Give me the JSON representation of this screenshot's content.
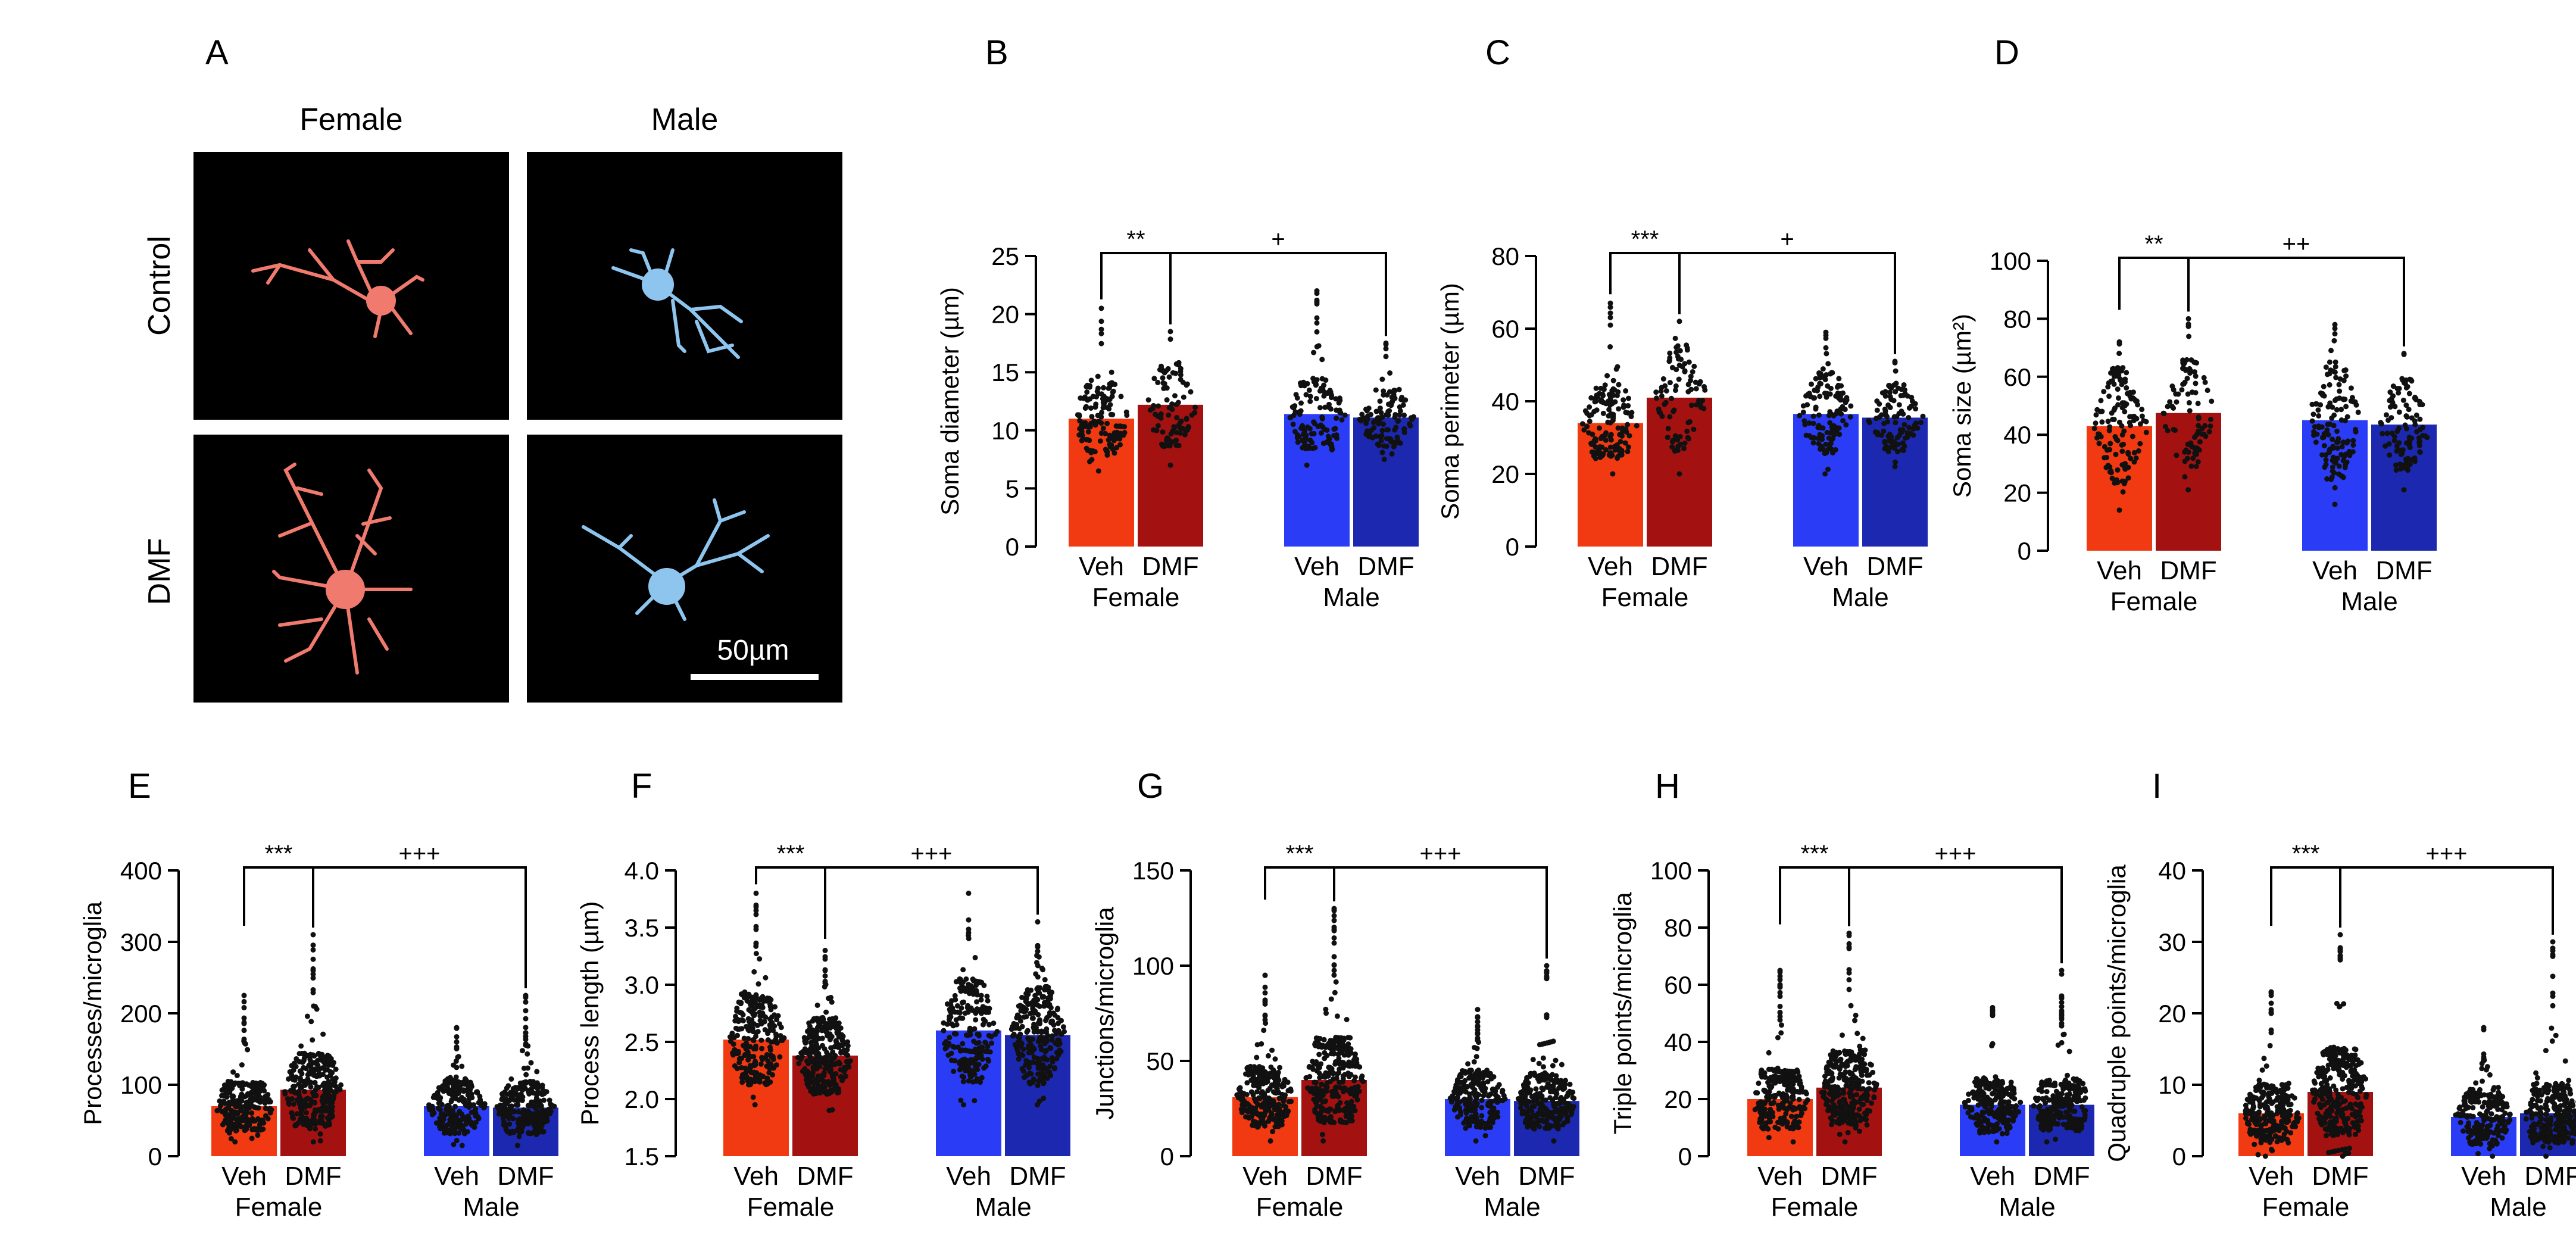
{
  "panel_a": {
    "letter": "A",
    "col_labels": [
      "Female",
      "Male"
    ],
    "row_labels": [
      "Control",
      "DMF"
    ],
    "scale_bar": "50µm",
    "colors": {
      "female_cell": "#f07a6e",
      "male_cell": "#8ec5ee",
      "background": "#000000"
    }
  },
  "groups": [
    {
      "name": "Female",
      "conditions": [
        "Veh",
        "DMF"
      ]
    },
    {
      "name": "Male",
      "conditions": [
        "Veh",
        "DMF"
      ]
    }
  ],
  "bar_colors": [
    "#f23a12",
    "#a31210",
    "#2b3cf7",
    "#1c28b0"
  ],
  "chart_data": [
    {
      "id": "B",
      "type": "bar",
      "ylabel": "Soma diameter (µm)",
      "ylim": [
        0,
        25
      ],
      "yticks": [
        0,
        5,
        10,
        15,
        20,
        25
      ],
      "categories": [
        "Veh",
        "DMF",
        "Veh",
        "DMF"
      ],
      "values": [
        11,
        12.2,
        11.4,
        11.1
      ],
      "point_range": [
        [
          6.5,
          20.5
        ],
        [
          7,
          18.5
        ],
        [
          7,
          22
        ],
        [
          7.5,
          17.5
        ]
      ],
      "point_counts": [
        140,
        90,
        130,
        110
      ],
      "sig_female": "**",
      "sig_cross": "+"
    },
    {
      "id": "C",
      "type": "bar",
      "ylabel": "Soma perimeter (µm)",
      "ylim": [
        0,
        80
      ],
      "yticks": [
        0,
        20,
        40,
        60,
        80
      ],
      "categories": [
        "Veh",
        "DMF",
        "Veh",
        "DMF"
      ],
      "values": [
        34,
        41,
        36.5,
        35.5
      ],
      "point_range": [
        [
          20,
          67
        ],
        [
          20,
          62
        ],
        [
          20,
          59
        ],
        [
          22,
          51
        ]
      ],
      "point_counts": [
        140,
        90,
        130,
        110
      ],
      "sig_female": "***",
      "sig_cross": "+"
    },
    {
      "id": "D",
      "type": "bar",
      "ylabel": "Soma size (µm²)",
      "ylim": [
        0,
        100
      ],
      "yticks": [
        0,
        20,
        40,
        60,
        80,
        100
      ],
      "categories": [
        "Veh",
        "DMF",
        "Veh",
        "DMF"
      ],
      "values": [
        43,
        47.5,
        45,
        43.5
      ],
      "point_range": [
        [
          14,
          72
        ],
        [
          21,
          80
        ],
        [
          16,
          78
        ],
        [
          21,
          68
        ]
      ],
      "point_counts": [
        140,
        90,
        130,
        110
      ],
      "sig_female": "**",
      "sig_cross": "++"
    },
    {
      "id": "E",
      "type": "bar",
      "ylabel": "Processes/microglia",
      "ylim": [
        0,
        400
      ],
      "yticks": [
        0,
        100,
        200,
        300,
        400
      ],
      "categories": [
        "Veh",
        "DMF",
        "Veh",
        "DMF"
      ],
      "values": [
        70,
        93,
        70,
        68
      ],
      "point_range": [
        [
          20,
          225
        ],
        [
          20,
          310
        ],
        [
          15,
          180
        ],
        [
          15,
          225
        ]
      ],
      "point_counts": [
        250,
        300,
        230,
        260
      ],
      "sig_female": "***",
      "sig_cross": "+++"
    },
    {
      "id": "F",
      "type": "bar",
      "ylabel": "Process length (µm)",
      "ylim": [
        1.5,
        4.0
      ],
      "yticks": [
        1.5,
        2.0,
        2.5,
        3.0,
        3.5,
        4.0
      ],
      "categories": [
        "Veh",
        "DMF",
        "Veh",
        "DMF"
      ],
      "values": [
        2.52,
        2.38,
        2.6,
        2.56
      ],
      "point_range": [
        [
          1.95,
          3.8
        ],
        [
          1.9,
          3.3
        ],
        [
          1.95,
          3.8
        ],
        [
          1.95,
          3.55
        ]
      ],
      "point_counts": [
        250,
        300,
        230,
        260
      ],
      "sig_female": "***",
      "sig_cross": "+++"
    },
    {
      "id": "G",
      "type": "bar",
      "ylabel": "Junctions/microglia",
      "ylim": [
        0,
        150
      ],
      "yticks": [
        0,
        50,
        100,
        150
      ],
      "categories": [
        "Veh",
        "DMF",
        "Veh",
        "DMF"
      ],
      "values": [
        31,
        40,
        30,
        29
      ],
      "point_range": [
        [
          8,
          95
        ],
        [
          8,
          130
        ],
        [
          8,
          77
        ],
        [
          8,
          100
        ]
      ],
      "point_counts": [
        250,
        300,
        230,
        260
      ],
      "sig_female": "***",
      "sig_cross": "+++"
    },
    {
      "id": "H",
      "type": "bar",
      "ylabel": "Triple points/microglia",
      "ylim": [
        0,
        100
      ],
      "yticks": [
        0,
        20,
        40,
        60,
        80,
        100
      ],
      "categories": [
        "Veh",
        "DMF",
        "Veh",
        "DMF"
      ],
      "values": [
        20,
        24,
        18,
        18
      ],
      "point_range": [
        [
          5,
          65
        ],
        [
          5,
          78
        ],
        [
          5,
          52
        ],
        [
          5,
          65
        ]
      ],
      "point_counts": [
        250,
        300,
        230,
        260
      ],
      "sig_female": "***",
      "sig_cross": "+++"
    },
    {
      "id": "I",
      "type": "bar",
      "ylabel": "Quadruple points/microglia",
      "ylim": [
        0,
        40
      ],
      "yticks": [
        0,
        10,
        20,
        30,
        40
      ],
      "categories": [
        "Veh",
        "DMF",
        "Veh",
        "DMF"
      ],
      "values": [
        6,
        9,
        5.5,
        6
      ],
      "point_range": [
        [
          0,
          23
        ],
        [
          0,
          31
        ],
        [
          0,
          18
        ],
        [
          0,
          30
        ]
      ],
      "point_counts": [
        250,
        300,
        230,
        260
      ],
      "sig_female": "***",
      "sig_cross": "+++"
    }
  ]
}
